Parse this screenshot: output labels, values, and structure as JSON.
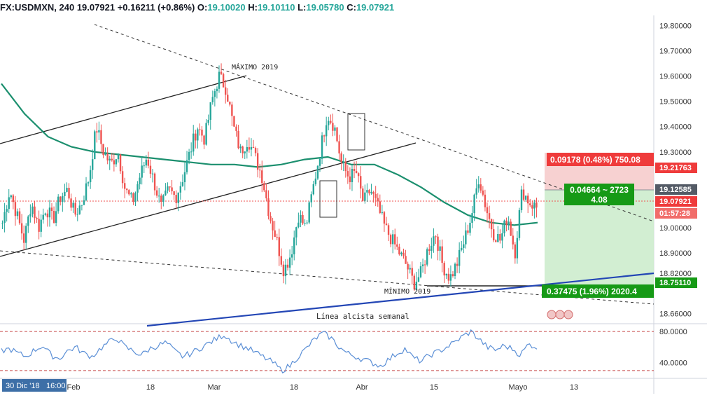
{
  "header": {
    "symbol": "FX:USDMXN, 240",
    "last": "19.07921",
    "change": "+0.16211 (+0.86%)",
    "o_label": "O:",
    "o_value": "19.10020",
    "h_label": "H:",
    "h_value": "19.10110",
    "l_label": "L:",
    "l_value": "19.05780",
    "c_label": "C:",
    "c_value": "19.07921"
  },
  "annotations": {
    "max_label": "MÁXIMO 2019",
    "min_label": "MÍNIMO 2019",
    "trend_label": "Línea alcista semanal"
  },
  "position_tool": {
    "target_text": "0.09178 (0.48%) 750.08",
    "mid_line1": "0.04664 ~ 2723",
    "mid_line2": "4.08",
    "stop_text": "0.37475 (1.96%) 2020.4"
  },
  "price_labels": {
    "target": "19.21763",
    "entry": "19.12585",
    "last": "19.07921",
    "countdown": "01:57:28",
    "stop": "18.75110"
  },
  "date_cursor": {
    "date": "30 Dic '18",
    "time": "16:00"
  },
  "colors": {
    "up": "#26a69a",
    "down": "#ef5350",
    "ma": "#1b8f6e",
    "trend": "#2962ff",
    "rsi": "#5b8fd6"
  },
  "chart_data": {
    "type": "candlestick",
    "symbol": "USDMXN",
    "timeframe": "240",
    "ylim": [
      18.62,
      19.84
    ],
    "price_axis_ticks": [
      "19.80000",
      "19.70000",
      "19.60000",
      "19.50000",
      "19.40000",
      "19.30000",
      "19.12585",
      "19.00000",
      "18.90000",
      "18.82000",
      "18.66000"
    ],
    "time_axis_ticks": [
      "Feb",
      "18",
      "Mar",
      "18",
      "Abr",
      "15",
      "Mayo",
      "13"
    ],
    "close_path": [
      19.02,
      19.15,
      19.05,
      18.95,
      19.1,
      19.0,
      19.08,
      19.03,
      19.12,
      19.15,
      19.05,
      19.1,
      19.2,
      19.4,
      19.3,
      19.25,
      19.3,
      19.15,
      19.1,
      19.2,
      19.28,
      19.18,
      19.08,
      19.15,
      19.12,
      19.2,
      19.3,
      19.4,
      19.35,
      19.5,
      19.6,
      19.55,
      19.4,
      19.3,
      19.35,
      19.28,
      19.2,
      19.05,
      18.95,
      18.83,
      18.9,
      19.05,
      19.0,
      19.15,
      19.3,
      19.45,
      19.4,
      19.25,
      19.2,
      19.22,
      19.1,
      19.15,
      19.08,
      19.0,
      18.95,
      18.9,
      18.85,
      18.78,
      18.82,
      18.92,
      18.98,
      18.85,
      18.8,
      18.86,
      18.95,
      19.05,
      19.2,
      19.08,
      18.98,
      18.95,
      19.05,
      18.9,
      19.15,
      19.1,
      19.08
    ],
    "ma_path": [
      19.57,
      19.45,
      19.36,
      19.32,
      19.3,
      19.29,
      19.28,
      19.27,
      19.26,
      19.25,
      19.25,
      19.24,
      19.25,
      19.27,
      19.28,
      19.25,
      19.25,
      19.21,
      19.16,
      19.1,
      19.05,
      19.02,
      19.01,
      19.02
    ],
    "rsi": {
      "ylim": [
        20,
        90
      ],
      "ticks": [
        "80.0000",
        "40.0000"
      ],
      "levels": [
        80,
        30
      ],
      "path": [
        55,
        58,
        52,
        48,
        56,
        62,
        50,
        45,
        55,
        60,
        52,
        48,
        58,
        66,
        72,
        60,
        55,
        50,
        58,
        62,
        66,
        55,
        48,
        52,
        58,
        64,
        70,
        76,
        68,
        62,
        58,
        52,
        46,
        40,
        30,
        36,
        48,
        58,
        70,
        78,
        72,
        60,
        52,
        48,
        44,
        40,
        36,
        44,
        52,
        58,
        46,
        42,
        50,
        54,
        60,
        66,
        74,
        80,
        70,
        60,
        56,
        62,
        58,
        50,
        64,
        60
      ]
    }
  }
}
